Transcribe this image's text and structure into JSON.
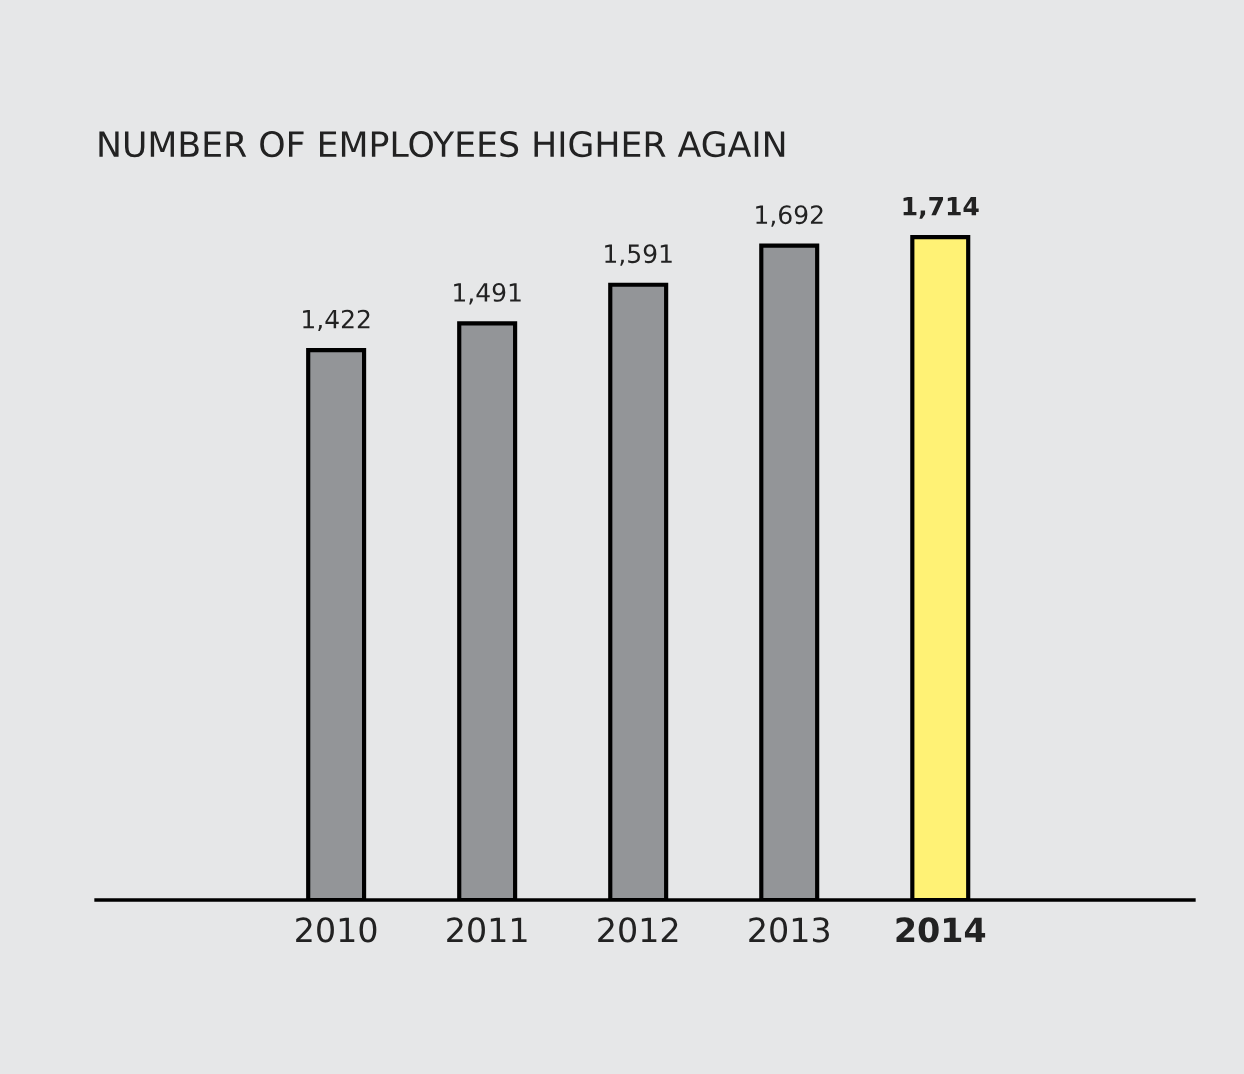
{
  "chart_data": {
    "type": "bar",
    "title": "NUMBER OF EMPLOYEES HIGHER AGAIN",
    "categories": [
      "2010",
      "2011",
      "2012",
      "2013",
      "2014"
    ],
    "values": [
      1422,
      1491,
      1591,
      1692,
      1714
    ],
    "colors": [
      "#939598",
      "#939598",
      "#939598",
      "#939598",
      "#fff275"
    ],
    "value_labels": [
      "1,422",
      "1,491",
      "1,591",
      "1,692",
      "1,714"
    ],
    "tick_labels": "x",
    "grid": false,
    "legend": false
  }
}
